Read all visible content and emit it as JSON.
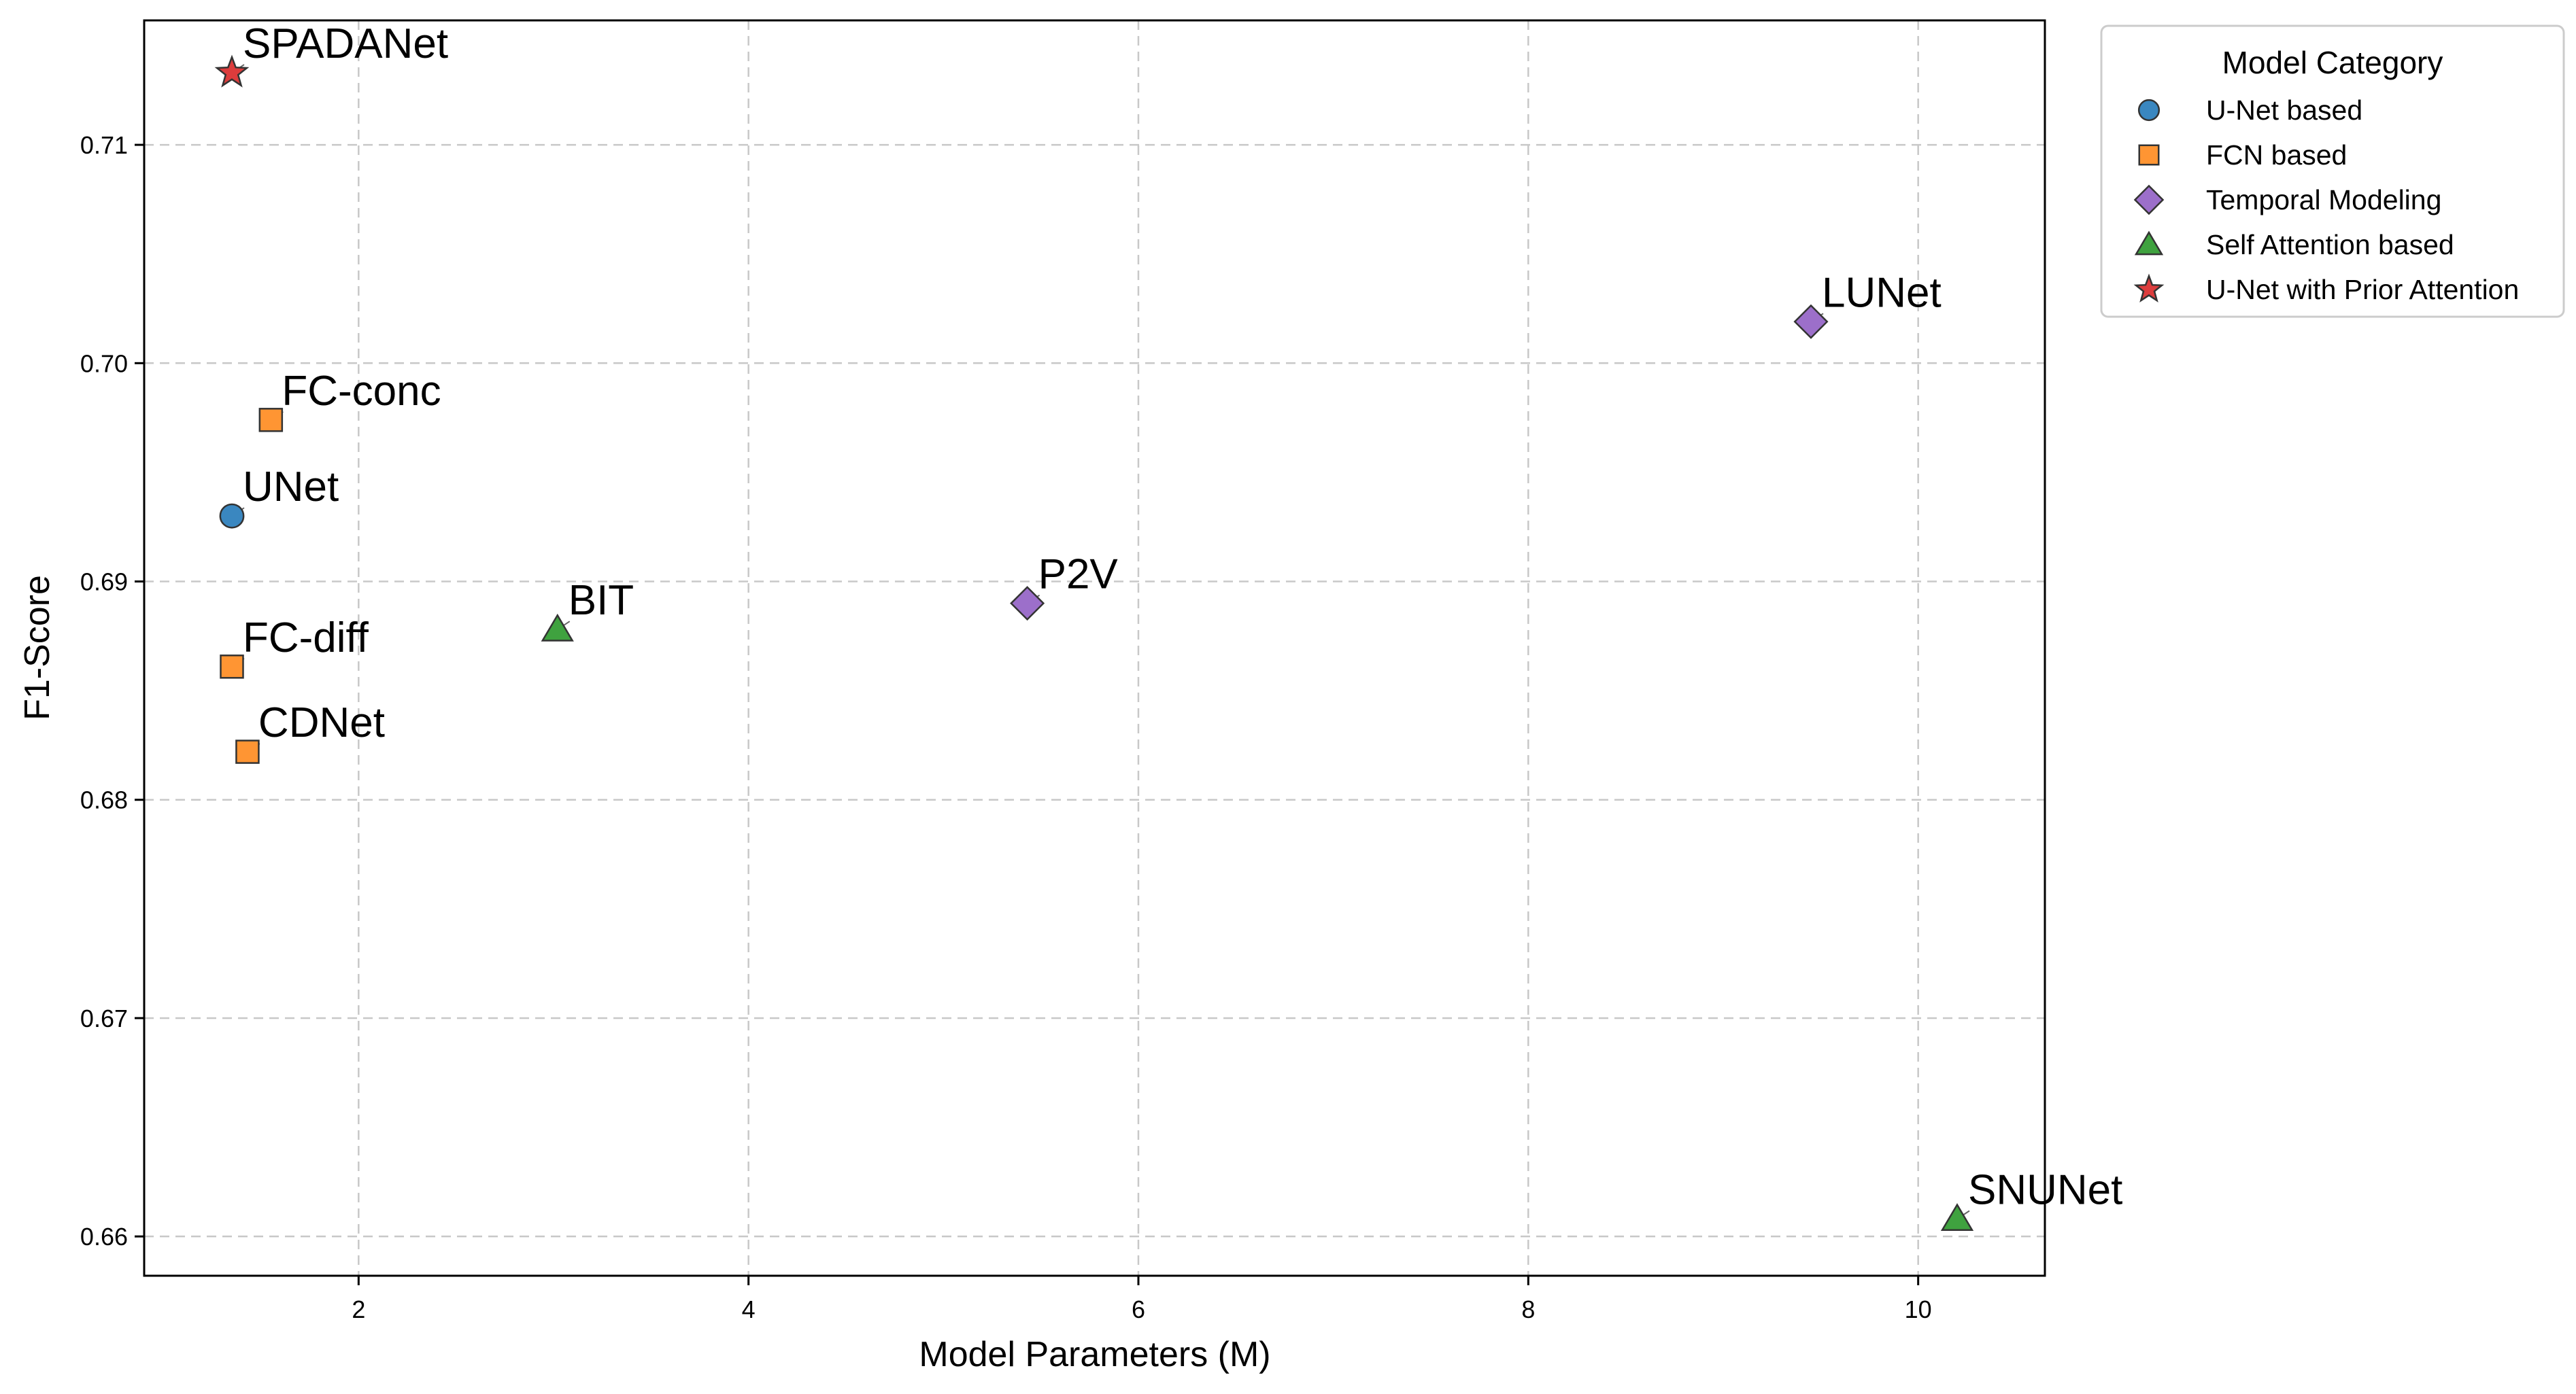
{
  "chart_data": {
    "type": "scatter",
    "xlabel": "Model Parameters (M)",
    "ylabel": "F1-Score",
    "xlim": [
      0.9,
      10.65
    ],
    "ylim": [
      0.6582,
      0.7157
    ],
    "xticks": [
      2,
      4,
      6,
      8,
      10
    ],
    "yticks": [
      0.66,
      0.67,
      0.68,
      0.69,
      0.7,
      0.71
    ],
    "ytick_labels": [
      "0.66",
      "0.67",
      "0.68",
      "0.69",
      "0.70",
      "0.71"
    ],
    "grid": true,
    "legend": {
      "title": "Model Category",
      "position": "outside-top-right"
    },
    "series": [
      {
        "name": "U-Net based",
        "color": "#3a87c0",
        "marker": "circle",
        "points": [
          {
            "label": "UNet",
            "x": 1.35,
            "y": 0.693
          }
        ]
      },
      {
        "name": "FCN based",
        "color": "#ff9533",
        "marker": "square",
        "points": [
          {
            "label": "FC-conc",
            "x": 1.55,
            "y": 0.6974
          },
          {
            "label": "FC-diff",
            "x": 1.35,
            "y": 0.6861
          },
          {
            "label": "CDNet",
            "x": 1.43,
            "y": 0.6822
          }
        ]
      },
      {
        "name": "Temporal Modeling",
        "color": "#9c6fca",
        "marker": "diamond",
        "points": [
          {
            "label": "P2V",
            "x": 5.43,
            "y": 0.689
          },
          {
            "label": "LUNet",
            "x": 9.45,
            "y": 0.7019
          }
        ]
      },
      {
        "name": "Self Attention based",
        "color": "#3fa23f",
        "marker": "triangle",
        "points": [
          {
            "label": "BIT",
            "x": 3.02,
            "y": 0.6878
          },
          {
            "label": "SNUNet",
            "x": 10.2,
            "y": 0.6608
          }
        ]
      },
      {
        "name": "U-Net with Prior Attention",
        "color": "#dc3c3c",
        "marker": "star",
        "points": [
          {
            "label": "SPADANet",
            "x": 1.35,
            "y": 0.7133
          }
        ]
      }
    ]
  }
}
